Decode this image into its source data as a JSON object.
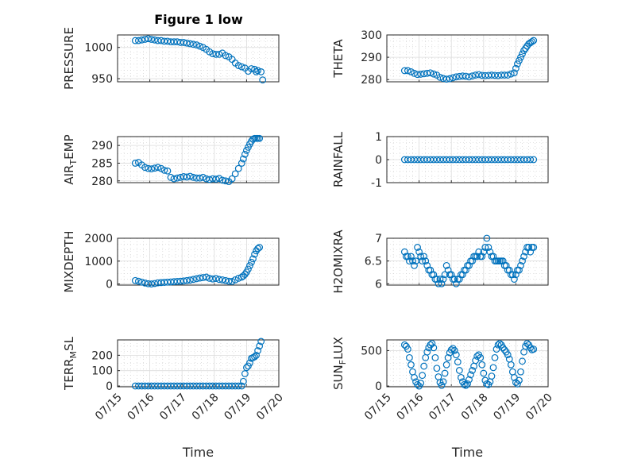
{
  "figure": {
    "title": "Figure 1 low"
  },
  "colors": {
    "marker": "#0072BD",
    "axis": "#262626"
  },
  "chart_data": [
    {
      "type": "scatter",
      "id": "p1",
      "title": "Figure 1 low",
      "ylabel": "PRESSURE",
      "ylabel_sub": "",
      "ylim": [
        945,
        1020
      ],
      "yticks": [
        "950",
        "1000"
      ],
      "ytick_values": [
        950,
        1000
      ],
      "xlabel": "",
      "xlim": [
        0,
        5
      ],
      "xticks": [],
      "grid": "on",
      "x": [
        0.55,
        0.65,
        0.75,
        0.85,
        0.95,
        1.05,
        1.15,
        1.25,
        1.35,
        1.45,
        1.55,
        1.65,
        1.75,
        1.85,
        1.95,
        2.05,
        2.15,
        2.25,
        2.35,
        2.45,
        2.55,
        2.65,
        2.75,
        2.85,
        2.95,
        3.05,
        3.15,
        3.25,
        3.35,
        3.45,
        3.55,
        3.65,
        3.75,
        3.85,
        3.95,
        4.05,
        4.15,
        4.25,
        4.3,
        4.35,
        4.45,
        4.5
      ],
      "y": [
        1011,
        1011,
        1012,
        1013,
        1014,
        1013,
        1012,
        1011,
        1011,
        1010,
        1010,
        1009,
        1009,
        1009,
        1008,
        1008,
        1007,
        1006,
        1005,
        1004,
        1002,
        1000,
        997,
        993,
        990,
        989,
        989,
        991,
        987,
        985,
        981,
        975,
        971,
        969,
        967,
        962,
        966,
        965,
        961,
        963,
        961,
        948
      ]
    },
    {
      "type": "scatter",
      "id": "p2",
      "ylabel": "THETA",
      "ylabel_sub": "",
      "ylim": [
        279,
        300
      ],
      "yticks": [
        "280",
        "290",
        "300"
      ],
      "ytick_values": [
        280,
        290,
        300
      ],
      "xlabel": "",
      "xlim": [
        0,
        5
      ],
      "xticks": [],
      "grid": "on",
      "x": [
        0.55,
        0.65,
        0.75,
        0.85,
        0.95,
        1.05,
        1.15,
        1.25,
        1.35,
        1.45,
        1.55,
        1.65,
        1.75,
        1.85,
        1.95,
        2.05,
        2.15,
        2.25,
        2.35,
        2.45,
        2.55,
        2.65,
        2.75,
        2.85,
        2.95,
        3.05,
        3.15,
        3.25,
        3.35,
        3.45,
        3.55,
        3.65,
        3.75,
        3.85,
        3.95,
        4.0,
        4.05,
        4.1,
        4.15,
        4.2,
        4.25,
        4.3,
        4.35,
        4.4,
        4.45,
        4.5,
        4.55
      ],
      "y": [
        284,
        284,
        283.5,
        282.8,
        282.3,
        282.4,
        282.6,
        282.8,
        283,
        282.5,
        282,
        281,
        280.5,
        280.2,
        280.4,
        280.8,
        281.2,
        281.4,
        281.6,
        281.5,
        281.2,
        281.6,
        282,
        282.2,
        281.9,
        281.8,
        281.9,
        282,
        281.9,
        281.8,
        282,
        282,
        282,
        282.5,
        283,
        285,
        287,
        288.5,
        290,
        291.5,
        293,
        294,
        295,
        296,
        296.5,
        297,
        297.5
      ]
    },
    {
      "type": "scatter",
      "id": "p3",
      "ylabel": "AIR",
      "ylabel_sub": "T",
      "ylabel_suffix": "EMP",
      "ylim": [
        279.5,
        292.5
      ],
      "yticks": [
        "280",
        "285",
        "290"
      ],
      "ytick_values": [
        280,
        285,
        290
      ],
      "xlabel": "",
      "xlim": [
        0,
        5
      ],
      "xticks": [],
      "grid": "on",
      "x": [
        0.55,
        0.65,
        0.75,
        0.85,
        0.95,
        1.05,
        1.15,
        1.25,
        1.35,
        1.45,
        1.55,
        1.65,
        1.75,
        1.85,
        1.95,
        2.05,
        2.15,
        2.25,
        2.35,
        2.45,
        2.55,
        2.65,
        2.75,
        2.85,
        2.95,
        3.05,
        3.15,
        3.25,
        3.35,
        3.45,
        3.55,
        3.65,
        3.75,
        3.85,
        3.9,
        3.95,
        4.0,
        4.05,
        4.1,
        4.15,
        4.2,
        4.25,
        4.3,
        4.35,
        4.4
      ],
      "y": [
        285,
        285.2,
        284.5,
        283.8,
        283.5,
        283.4,
        283.6,
        283.8,
        283.5,
        283,
        282.8,
        281,
        280.6,
        280.8,
        281,
        281.2,
        281.1,
        281.3,
        281,
        280.8,
        280.8,
        281,
        280.6,
        280.4,
        280.6,
        280.5,
        280.7,
        280.2,
        280,
        279.8,
        280.6,
        282,
        283.5,
        285,
        286.2,
        287.5,
        288.6,
        289.5,
        290.4,
        291.2,
        291.8,
        292,
        292,
        292,
        292
      ]
    },
    {
      "type": "scatter",
      "id": "p4",
      "ylabel": "RAINFALL",
      "ylabel_sub": "",
      "ylim": [
        -1,
        1
      ],
      "yticks": [
        "-1",
        "0",
        "1"
      ],
      "ytick_values": [
        -1,
        0,
        1
      ],
      "xlabel": "",
      "xlim": [
        0,
        5
      ],
      "xticks": [],
      "grid": "on",
      "x": [
        0.55,
        0.65,
        0.75,
        0.85,
        0.95,
        1.05,
        1.15,
        1.25,
        1.35,
        1.45,
        1.55,
        1.65,
        1.75,
        1.85,
        1.95,
        2.05,
        2.15,
        2.25,
        2.35,
        2.45,
        2.55,
        2.65,
        2.75,
        2.85,
        2.95,
        3.05,
        3.15,
        3.25,
        3.35,
        3.45,
        3.55,
        3.65,
        3.75,
        3.85,
        3.95,
        4.05,
        4.15,
        4.25,
        4.35,
        4.45,
        4.55
      ],
      "y": [
        0,
        0,
        0,
        0,
        0,
        0,
        0,
        0,
        0,
        0,
        0,
        0,
        0,
        0,
        0,
        0,
        0,
        0,
        0,
        0,
        0,
        0,
        0,
        0,
        0,
        0,
        0,
        0,
        0,
        0,
        0,
        0,
        0,
        0,
        0,
        0,
        0,
        0,
        0,
        0,
        0
      ]
    },
    {
      "type": "scatter",
      "id": "p5",
      "ylabel": "MIXDEPTH",
      "ylabel_sub": "",
      "ylim": [
        -50,
        2000
      ],
      "yticks": [
        "0",
        "1000",
        "2000"
      ],
      "ytick_values": [
        0,
        1000,
        2000
      ],
      "xlabel": "",
      "xlim": [
        0,
        5
      ],
      "xticks": [],
      "grid": "on",
      "x": [
        0.55,
        0.65,
        0.75,
        0.85,
        0.95,
        1.05,
        1.15,
        1.25,
        1.35,
        1.45,
        1.55,
        1.65,
        1.75,
        1.85,
        1.95,
        2.05,
        2.15,
        2.25,
        2.35,
        2.45,
        2.55,
        2.65,
        2.75,
        2.85,
        2.95,
        3.05,
        3.15,
        3.25,
        3.35,
        3.45,
        3.55,
        3.65,
        3.75,
        3.85,
        3.9,
        3.95,
        4.0,
        4.05,
        4.1,
        4.15,
        4.2,
        4.25,
        4.3,
        4.35,
        4.4
      ],
      "y": [
        150,
        120,
        80,
        40,
        10,
        0,
        20,
        50,
        60,
        70,
        80,
        90,
        100,
        110,
        120,
        130,
        150,
        170,
        200,
        230,
        260,
        280,
        300,
        250,
        220,
        240,
        200,
        180,
        150,
        120,
        110,
        180,
        250,
        300,
        350,
        420,
        520,
        650,
        800,
        950,
        1100,
        1300,
        1450,
        1550,
        1600
      ]
    },
    {
      "type": "scatter",
      "id": "p6",
      "ylabel": "H2OMIXRA",
      "ylabel_sub": "",
      "ylim": [
        5.97,
        7.0
      ],
      "yticks": [
        "6",
        "6.5",
        "7"
      ],
      "ytick_values": [
        6,
        6.5,
        7
      ],
      "xlabel": "",
      "xlim": [
        0,
        5
      ],
      "xticks": [],
      "grid": "on",
      "x": [
        0.55,
        0.6,
        0.65,
        0.7,
        0.75,
        0.8,
        0.85,
        0.9,
        0.95,
        1.0,
        1.05,
        1.1,
        1.15,
        1.2,
        1.25,
        1.3,
        1.35,
        1.4,
        1.45,
        1.5,
        1.55,
        1.6,
        1.65,
        1.7,
        1.75,
        1.8,
        1.85,
        1.9,
        1.95,
        2.0,
        2.05,
        2.1,
        2.15,
        2.2,
        2.25,
        2.3,
        2.35,
        2.4,
        2.45,
        2.5,
        2.55,
        2.6,
        2.65,
        2.7,
        2.75,
        2.8,
        2.85,
        2.9,
        2.95,
        3.0,
        3.05,
        3.1,
        3.15,
        3.2,
        3.25,
        3.3,
        3.35,
        3.4,
        3.45,
        3.5,
        3.55,
        3.6,
        3.65,
        3.7,
        3.75,
        3.8,
        3.85,
        3.9,
        3.95,
        4.0,
        4.05,
        4.1,
        4.15,
        4.2,
        4.25,
        4.3,
        4.35,
        4.4,
        4.45,
        4.5,
        4.55
      ],
      "y": [
        6.7,
        6.6,
        6.6,
        6.5,
        6.6,
        6.5,
        6.4,
        6.5,
        6.8,
        6.7,
        6.6,
        6.5,
        6.6,
        6.5,
        6.4,
        6.3,
        6.3,
        6.2,
        6.2,
        6.1,
        6.1,
        6.0,
        6.1,
        6.0,
        6.1,
        6.2,
        6.4,
        6.3,
        6.2,
        6.2,
        6.1,
        6.1,
        6.0,
        6.1,
        6.1,
        6.2,
        6.2,
        6.3,
        6.3,
        6.4,
        6.4,
        6.5,
        6.5,
        6.6,
        6.6,
        6.6,
        6.7,
        6.6,
        6.6,
        6.7,
        6.8,
        7.0,
        6.8,
        6.7,
        6.6,
        6.6,
        6.5,
        6.5,
        6.5,
        6.5,
        6.5,
        6.5,
        6.4,
        6.4,
        6.3,
        6.3,
        6.2,
        6.2,
        6.1,
        6.2,
        6.3,
        6.3,
        6.4,
        6.5,
        6.6,
        6.7,
        6.8,
        6.8,
        6.7,
        6.8,
        6.8
      ]
    },
    {
      "type": "scatter",
      "id": "p7",
      "ylabel": "TERR",
      "ylabel_sub": "M",
      "ylabel_suffix": "SL",
      "ylim": [
        -5,
        300
      ],
      "yticks": [
        "0",
        "100",
        "200"
      ],
      "ytick_values": [
        0,
        100,
        200
      ],
      "xlabel": "Time",
      "xlim": [
        0,
        5
      ],
      "xticks": [
        "07/15",
        "07/16",
        "07/17",
        "07/18",
        "07/19",
        "07/20"
      ],
      "grid": "on",
      "x": [
        0.55,
        0.65,
        0.75,
        0.85,
        0.95,
        1.05,
        1.15,
        1.25,
        1.35,
        1.45,
        1.55,
        1.65,
        1.75,
        1.85,
        1.95,
        2.05,
        2.15,
        2.25,
        2.35,
        2.45,
        2.55,
        2.65,
        2.75,
        2.85,
        2.95,
        3.05,
        3.15,
        3.25,
        3.35,
        3.45,
        3.55,
        3.65,
        3.75,
        3.85,
        3.9,
        3.95,
        4.0,
        4.05,
        4.1,
        4.15,
        4.2,
        4.25,
        4.3,
        4.35,
        4.4,
        4.45
      ],
      "y": [
        0,
        0,
        0,
        0,
        0,
        0,
        0,
        0,
        0,
        0,
        0,
        0,
        0,
        0,
        0,
        0,
        0,
        0,
        0,
        0,
        0,
        0,
        0,
        0,
        0,
        0,
        0,
        0,
        0,
        0,
        0,
        0,
        0,
        0,
        30,
        80,
        120,
        130,
        150,
        180,
        185,
        190,
        200,
        230,
        260,
        290
      ]
    },
    {
      "type": "scatter",
      "id": "p8",
      "ylabel": "SUN",
      "ylabel_sub": "F",
      "ylabel_suffix": "LUX",
      "ylim": [
        -10,
        650
      ],
      "yticks": [
        "0",
        "500"
      ],
      "ytick_values": [
        0,
        500
      ],
      "xlabel": "Time",
      "xlim": [
        0,
        5
      ],
      "xticks": [
        "07/15",
        "07/16",
        "07/17",
        "07/18",
        "07/19",
        "07/20"
      ],
      "grid": "on",
      "x": [
        0.55,
        0.6,
        0.65,
        0.7,
        0.75,
        0.8,
        0.85,
        0.9,
        0.95,
        1.0,
        1.05,
        1.1,
        1.15,
        1.2,
        1.25,
        1.3,
        1.35,
        1.4,
        1.45,
        1.5,
        1.55,
        1.6,
        1.65,
        1.7,
        1.75,
        1.8,
        1.85,
        1.9,
        1.95,
        2.0,
        2.05,
        2.1,
        2.15,
        2.2,
        2.25,
        2.3,
        2.35,
        2.4,
        2.45,
        2.5,
        2.55,
        2.6,
        2.65,
        2.7,
        2.75,
        2.8,
        2.85,
        2.9,
        2.95,
        3.0,
        3.05,
        3.1,
        3.15,
        3.2,
        3.25,
        3.3,
        3.35,
        3.4,
        3.45,
        3.5,
        3.55,
        3.6,
        3.65,
        3.7,
        3.75,
        3.8,
        3.85,
        3.9,
        3.95,
        4.0,
        4.05,
        4.1,
        4.15,
        4.2,
        4.25,
        4.3,
        4.35,
        4.4,
        4.45,
        4.5,
        4.55
      ],
      "y": [
        580,
        560,
        520,
        400,
        300,
        200,
        120,
        60,
        20,
        0,
        40,
        150,
        280,
        400,
        480,
        540,
        580,
        600,
        540,
        400,
        250,
        130,
        50,
        10,
        60,
        180,
        300,
        400,
        470,
        510,
        530,
        500,
        440,
        340,
        220,
        120,
        60,
        20,
        10,
        30,
        90,
        160,
        220,
        280,
        360,
        420,
        440,
        400,
        300,
        180,
        80,
        30,
        20,
        60,
        140,
        260,
        400,
        520,
        580,
        600,
        580,
        540,
        510,
        480,
        440,
        380,
        300,
        200,
        120,
        50,
        30,
        80,
        200,
        350,
        480,
        560,
        600,
        580,
        540,
        510,
        520
      ]
    }
  ]
}
